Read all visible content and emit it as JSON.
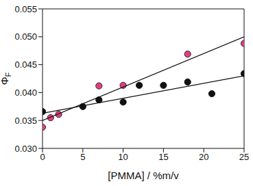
{
  "chart_data": {
    "type": "scatter",
    "x_label": "[PMMA] / %m/v",
    "y_label": "ΦF",
    "xlim": [
      0,
      25
    ],
    "xticks": [
      0,
      5,
      10,
      15,
      20,
      25
    ],
    "ylim": [
      0.03,
      0.055
    ],
    "yticks": [
      {
        "value": 0.03,
        "label": "0.030"
      },
      {
        "value": 0.035,
        "label": "0.035"
      },
      {
        "value": 0.04,
        "label": "0.040"
      },
      {
        "value": 0.045,
        "label": "0.045"
      },
      {
        "value": 0.05,
        "label": "0.050"
      },
      {
        "value": 0.055,
        "label": "0.055"
      }
    ],
    "grid": false,
    "series": [
      {
        "type": "scatter",
        "color": "#111111",
        "marker": "circle",
        "x": [
          0,
          5,
          7,
          10,
          12,
          15,
          18,
          21,
          25
        ],
        "values": [
          0.0366,
          0.0375,
          0.0387,
          0.0383,
          0.0413,
          0.0413,
          0.0419,
          0.0398,
          0.0434
        ]
      },
      {
        "type": "scatter",
        "color": "#e0407a",
        "marker": "circle",
        "x": [
          0,
          1,
          2,
          7,
          10,
          18,
          25
        ],
        "values": [
          0.0338,
          0.0355,
          0.0361,
          0.0412,
          0.0413,
          0.0469,
          0.0488
        ]
      },
      {
        "type": "line",
        "color": "#111111",
        "line_style": "solid",
        "x": [
          0,
          25
        ],
        "values": [
          0.0363,
          0.043
        ]
      },
      {
        "type": "line",
        "color": "#111111",
        "line_style": "solid",
        "x": [
          0,
          25
        ],
        "values": [
          0.035,
          0.05
        ]
      }
    ]
  }
}
